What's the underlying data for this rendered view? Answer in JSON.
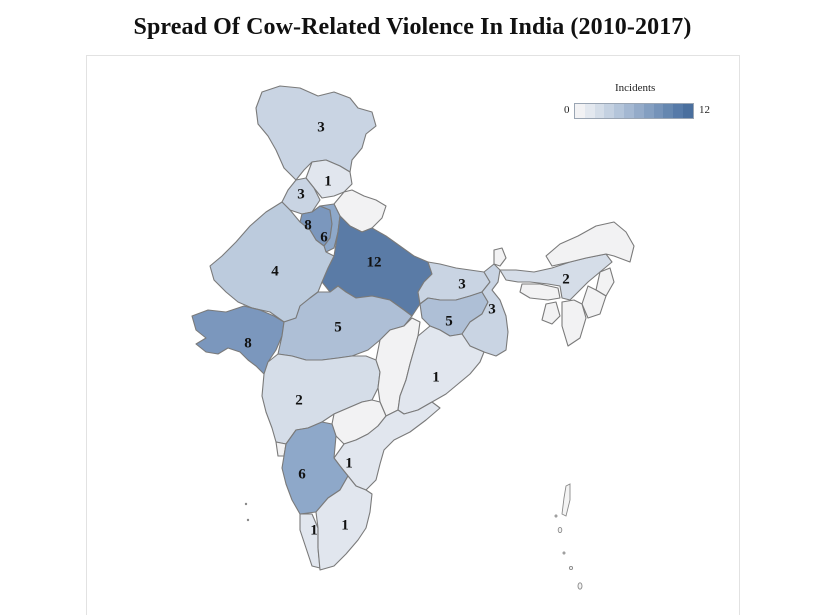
{
  "title": "Spread Of Cow-Related Violence In India (2010-2017)",
  "legend": {
    "title": "Incidents",
    "min": "0",
    "max": "12",
    "colors": [
      "#f2f2f4",
      "#e3e8ef",
      "#d4dde8",
      "#c4d1e1",
      "#b4c5da",
      "#a4b8d2",
      "#94abc9",
      "#849fc1",
      "#7593b9",
      "#6587b0",
      "#567aa8",
      "#4a6f9e"
    ]
  },
  "colors": {
    "0": "#f2f2f3",
    "1": "#e1e6ee",
    "2": "#d5dde8",
    "3": "#c9d4e3",
    "4": "#bccbdd",
    "5": "#aebfd6",
    "6": "#8ea8c9",
    "8": "#7b97bd",
    "12": "#5a7ba6"
  },
  "chart_data": {
    "type": "choropleth",
    "title": "Spread Of Cow-Related Violence In India (2010-2017)",
    "legend_title": "Incidents",
    "range": [
      0,
      12
    ],
    "regions": [
      {
        "name": "Jammu & Kashmir",
        "value": 3
      },
      {
        "name": "Himachal Pradesh",
        "value": 1
      },
      {
        "name": "Punjab",
        "value": 3
      },
      {
        "name": "Haryana",
        "value": 8
      },
      {
        "name": "Delhi",
        "value": 6
      },
      {
        "name": "Uttarakhand",
        "value": 0
      },
      {
        "name": "Uttar Pradesh",
        "value": 12
      },
      {
        "name": "Rajasthan",
        "value": 4
      },
      {
        "name": "Gujarat",
        "value": 8
      },
      {
        "name": "Madhya Pradesh",
        "value": 5
      },
      {
        "name": "Bihar",
        "value": 3
      },
      {
        "name": "Jharkhand",
        "value": 5
      },
      {
        "name": "West Bengal",
        "value": 3
      },
      {
        "name": "Assam",
        "value": 2
      },
      {
        "name": "Maharashtra",
        "value": 2
      },
      {
        "name": "Chhattisgarh",
        "value": 0
      },
      {
        "name": "Odisha",
        "value": 1
      },
      {
        "name": "Telangana",
        "value": 0
      },
      {
        "name": "Karnataka",
        "value": 6
      },
      {
        "name": "Andhra Pradesh",
        "value": 1
      },
      {
        "name": "Kerala",
        "value": 1
      },
      {
        "name": "Tamil Nadu",
        "value": 1
      },
      {
        "name": "Sikkim",
        "value": 0
      },
      {
        "name": "Arunachal Pradesh",
        "value": 0
      },
      {
        "name": "Meghalaya",
        "value": 0
      },
      {
        "name": "Nagaland",
        "value": 0
      },
      {
        "name": "Manipur",
        "value": 0
      },
      {
        "name": "Mizoram",
        "value": 0
      },
      {
        "name": "Tripura",
        "value": 0
      },
      {
        "name": "Goa",
        "value": 0
      }
    ]
  },
  "labels": {
    "jk": "3",
    "hp": "1",
    "pb": "3",
    "hr": "8",
    "dl": "6",
    "up": "12",
    "rj": "4",
    "gj": "8",
    "mp": "5",
    "br": "3",
    "jh": "5",
    "wb": "3",
    "as": "2",
    "mh": "2",
    "od": "1",
    "ka": "6",
    "ap": "1",
    "kl": "1",
    "tn": "1"
  }
}
